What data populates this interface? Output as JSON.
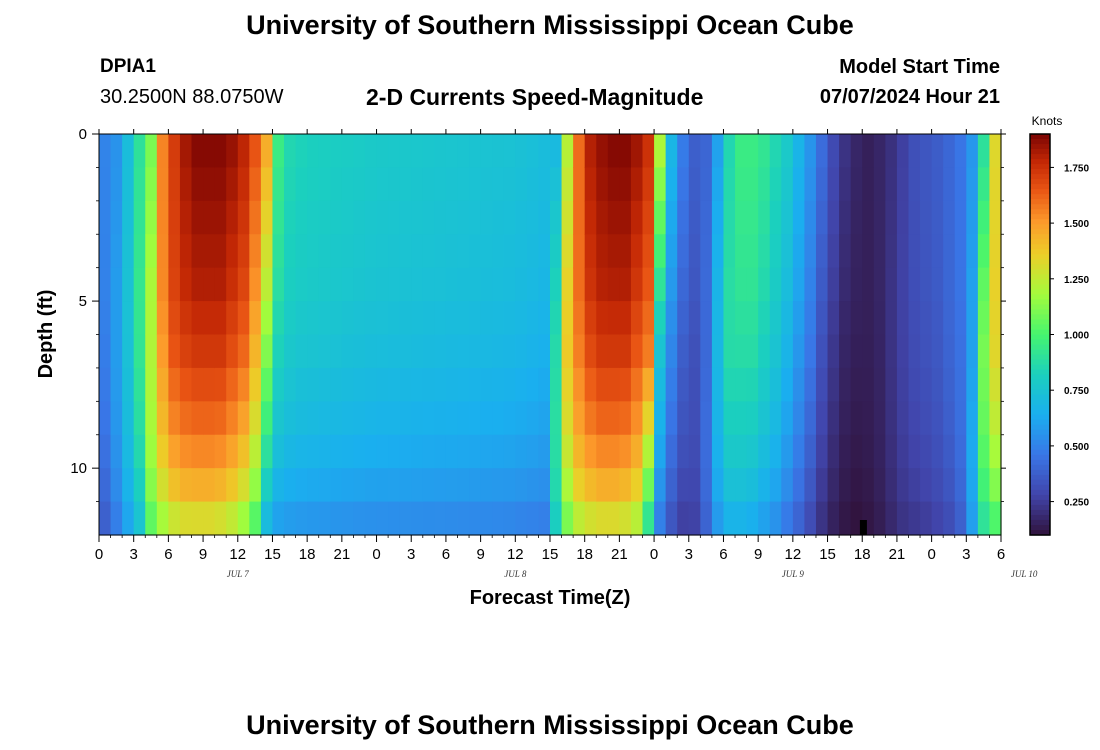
{
  "header": {
    "title": "University of Southern Mississippi Ocean Cube",
    "station_id": "DPIA1",
    "station_location": "30.2500N  88.0750W",
    "subtitle": "2-D Currents Speed-Magnitude",
    "model_start_label": "Model Start Time",
    "model_start_value": "07/07/2024 Hour 21"
  },
  "footer": {
    "title": "University of Southern Mississippi Ocean Cube"
  },
  "chart_data": {
    "type": "heatmap",
    "xlabel": "Forecast Time(Z)",
    "ylabel": "Depth (ft)",
    "x_tick_labels": [
      "0",
      "3",
      "6",
      "9",
      "12",
      "15",
      "18",
      "21",
      "0",
      "3",
      "6",
      "9",
      "12",
      "15",
      "18",
      "21",
      "0",
      "3",
      "6",
      "9",
      "12",
      "15",
      "18",
      "21",
      "0",
      "3",
      "6"
    ],
    "x_hours_range": [
      0,
      78
    ],
    "day_labels": [
      {
        "text": "JUL 7",
        "hour": 12
      },
      {
        "text": "JUL 8",
        "hour": 36
      },
      {
        "text": "JUL 9",
        "hour": 60
      },
      {
        "text": "JUL 10",
        "hour": 80
      }
    ],
    "y_tick_labels": [
      "0",
      "5",
      "10"
    ],
    "y_ticks": [
      0,
      5,
      10
    ],
    "ylim": [
      0,
      12
    ],
    "depth_levels": [
      0.5,
      1.5,
      2.5,
      3.5,
      4.5,
      5.5,
      6.5,
      7.5,
      8.5,
      9.5,
      10.5,
      11.5
    ],
    "colorbar": {
      "unit": "Knots",
      "range": [
        0.1,
        1.9
      ],
      "tick_values": [
        0.25,
        0.5,
        0.75,
        1.0,
        1.25,
        1.5,
        1.75
      ],
      "tick_labels": [
        "0.250",
        "0.500",
        "0.750",
        "1.000",
        "1.250",
        "1.500",
        "1.750"
      ],
      "colormap": "turbo"
    },
    "surface_speed_profile": {
      "hours": [
        0,
        1.5,
        3,
        4.5,
        5.5,
        7,
        8.5,
        11,
        13,
        14.5,
        15.5,
        16.5,
        18,
        24,
        30,
        36,
        38,
        39.5,
        40,
        41,
        42.5,
        44,
        46,
        48,
        48.5,
        49,
        50,
        51,
        52,
        53,
        54,
        55,
        57,
        59.5,
        62,
        63,
        64,
        65,
        66.5,
        68,
        70.5,
        73,
        75,
        76,
        76.5,
        77,
        78
      ],
      "speeds": [
        0.48,
        0.55,
        0.8,
        1.1,
        1.55,
        1.8,
        1.88,
        1.88,
        1.75,
        1.45,
        0.95,
        0.85,
        0.82,
        0.78,
        0.76,
        0.74,
        0.72,
        0.7,
        0.95,
        1.5,
        1.8,
        1.88,
        1.88,
        1.7,
        1.2,
        0.8,
        0.55,
        0.4,
        0.35,
        0.45,
        0.75,
        0.95,
        0.95,
        0.78,
        0.5,
        0.35,
        0.25,
        0.18,
        0.15,
        0.18,
        0.32,
        0.38,
        0.48,
        0.65,
        0.9,
        1.2,
        1.45
      ]
    },
    "depth_attenuation": [
      1.0,
      0.99,
      0.98,
      0.97,
      0.96,
      0.94,
      0.92,
      0.89,
      0.86,
      0.82,
      0.77,
      0.7
    ]
  }
}
